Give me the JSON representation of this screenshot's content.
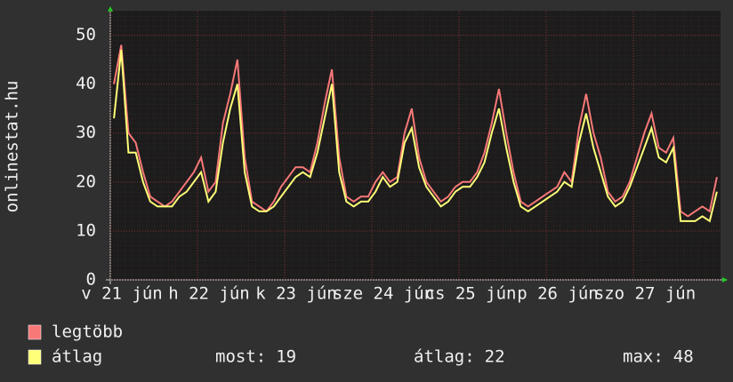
{
  "chart_data": {
    "type": "line",
    "y_label": "onlinestat.hu",
    "xticks": [
      "v 21 jún",
      "h 22 jún",
      "k 23 jún",
      "sze 24 jún",
      "cs 25 jún",
      "p 26 jún",
      "szo 27 jún"
    ],
    "ylim": [
      0,
      55
    ],
    "yticks": [
      0,
      10,
      20,
      30,
      40,
      50
    ],
    "grid": true,
    "series": [
      {
        "name": "legtöbb",
        "color": "#f87878",
        "values": [
          40,
          48,
          30,
          28,
          22,
          17,
          16,
          15,
          16,
          18,
          20,
          22,
          25,
          18,
          20,
          32,
          38,
          45,
          25,
          16,
          15,
          14,
          16,
          19,
          21,
          23,
          23,
          22,
          28,
          36,
          43,
          25,
          17,
          16,
          17,
          17,
          20,
          22,
          20,
          21,
          30,
          35,
          25,
          20,
          18,
          16,
          17,
          19,
          20,
          20,
          22,
          26,
          32,
          39,
          30,
          22,
          16,
          15,
          16,
          17,
          18,
          19,
          22,
          20,
          31,
          38,
          30,
          25,
          18,
          16,
          17,
          20,
          25,
          30,
          34,
          27,
          26,
          29,
          14,
          13,
          14,
          15,
          14,
          21
        ]
      },
      {
        "name": "átlag",
        "color": "#ffff78",
        "values": [
          33,
          47,
          26,
          26,
          20,
          16,
          15,
          15,
          15,
          17,
          18,
          20,
          22,
          16,
          18,
          28,
          35,
          40,
          22,
          15,
          14,
          14,
          15,
          17,
          19,
          21,
          22,
          21,
          26,
          33,
          40,
          22,
          16,
          15,
          16,
          16,
          18,
          21,
          19,
          20,
          28,
          31,
          23,
          19,
          17,
          15,
          16,
          18,
          19,
          19,
          21,
          24,
          30,
          35,
          27,
          20,
          15,
          14,
          15,
          16,
          17,
          18,
          20,
          19,
          28,
          34,
          27,
          22,
          17,
          15,
          16,
          19,
          23,
          27,
          31,
          25,
          24,
          27,
          12,
          12,
          12,
          13,
          12,
          18
        ]
      }
    ],
    "stats": [
      {
        "label": "most:",
        "value": 19
      },
      {
        "label": "átlag:",
        "value": 22
      },
      {
        "label": "max:",
        "value": 48
      }
    ]
  }
}
